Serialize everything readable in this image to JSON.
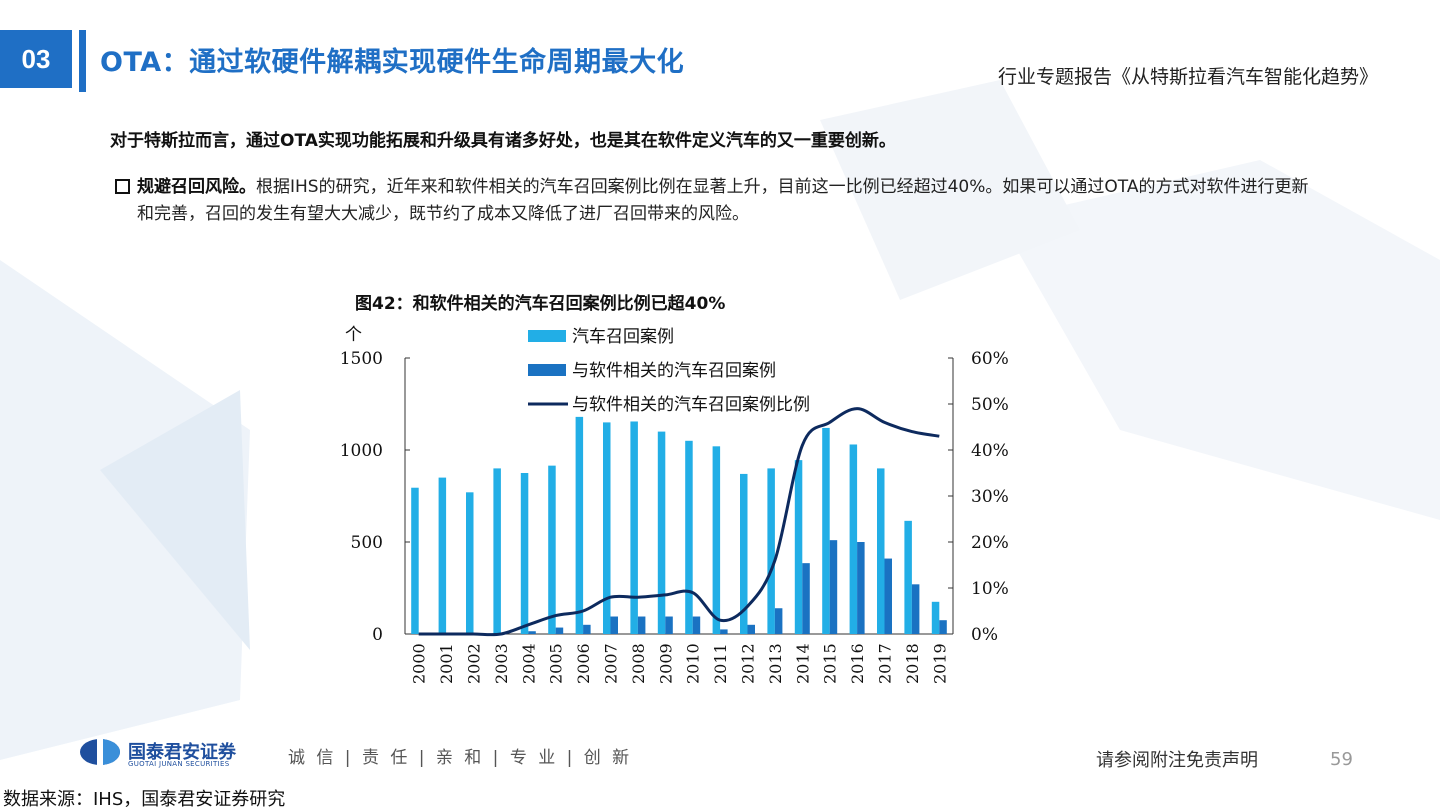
{
  "header": {
    "section_number": "03",
    "title": "OTA：通过软硬件解耦实现硬件生命周期最大化",
    "report_name": "行业专题报告《从特斯拉看汽车智能化趋势》"
  },
  "body": {
    "intro": "对于特斯拉而言，通过OTA实现功能拓展和升级具有诸多好处，也是其在软件定义汽车的又一重要创新。",
    "bullet_title": "规避召回风险。",
    "bullet_text": "根据IHS的研究，近年来和软件相关的汽车召回案例比例在显著上升，目前这一比例已经超过40%。如果可以通过OTA的方式对软件进行更新和完善，召回的发生有望大大减少，既节约了成本又降低了进厂召回带来的风险。"
  },
  "chart_title": "图42：和软件相关的汽车召回案例比例已超40%",
  "chart_data": {
    "type": "bar",
    "categories": [
      "2000",
      "2001",
      "2002",
      "2003",
      "2004",
      "2005",
      "2006",
      "2007",
      "2008",
      "2009",
      "2010",
      "2011",
      "2012",
      "2013",
      "2014",
      "2015",
      "2016",
      "2017",
      "2018",
      "2019"
    ],
    "ylabel": "个",
    "ylim": [
      0,
      1500
    ],
    "yticks": [
      "0",
      "500",
      "1000",
      "1500"
    ],
    "y2lim": [
      0,
      60
    ],
    "y2ticks": [
      "0%",
      "10%",
      "20%",
      "30%",
      "40%",
      "50%",
      "60%"
    ],
    "legend_position": "top-center",
    "grid": false,
    "series": [
      {
        "name": "汽车召回案例",
        "type": "bar",
        "color": "#22aee6",
        "values": [
          795,
          850,
          770,
          900,
          875,
          915,
          1180,
          1150,
          1155,
          1100,
          1050,
          1020,
          870,
          900,
          945,
          1120,
          1030,
          900,
          615,
          175
        ]
      },
      {
        "name": "与软件相关的汽车召回案例",
        "type": "bar",
        "color": "#1a72c2",
        "values": [
          0,
          0,
          0,
          0,
          15,
          35,
          50,
          95,
          95,
          95,
          95,
          25,
          50,
          140,
          385,
          510,
          500,
          410,
          270,
          75
        ]
      },
      {
        "name": "与软件相关的汽车召回案例比例",
        "type": "line",
        "axis": "right",
        "color": "#0d2a5e",
        "values": [
          0,
          0,
          0,
          0,
          2,
          4,
          5,
          8,
          8,
          8.5,
          9,
          3,
          6,
          16,
          41,
          46,
          49,
          46,
          44,
          43
        ]
      }
    ]
  },
  "footer": {
    "logo_cn": "国泰君安证券",
    "logo_en": "GUOTAI JUNAN SECURITIES",
    "slogan": "诚 信 | 责 任 | 亲 和 | 专 业 | 创 新",
    "disclaimer": "请参阅附注免责声明",
    "page_number": "59",
    "data_source": "数据来源：IHS，国泰君安证券研究"
  },
  "colors": {
    "brand_blue": "#1f6fc5",
    "bg_shape": "#e6eef6"
  }
}
